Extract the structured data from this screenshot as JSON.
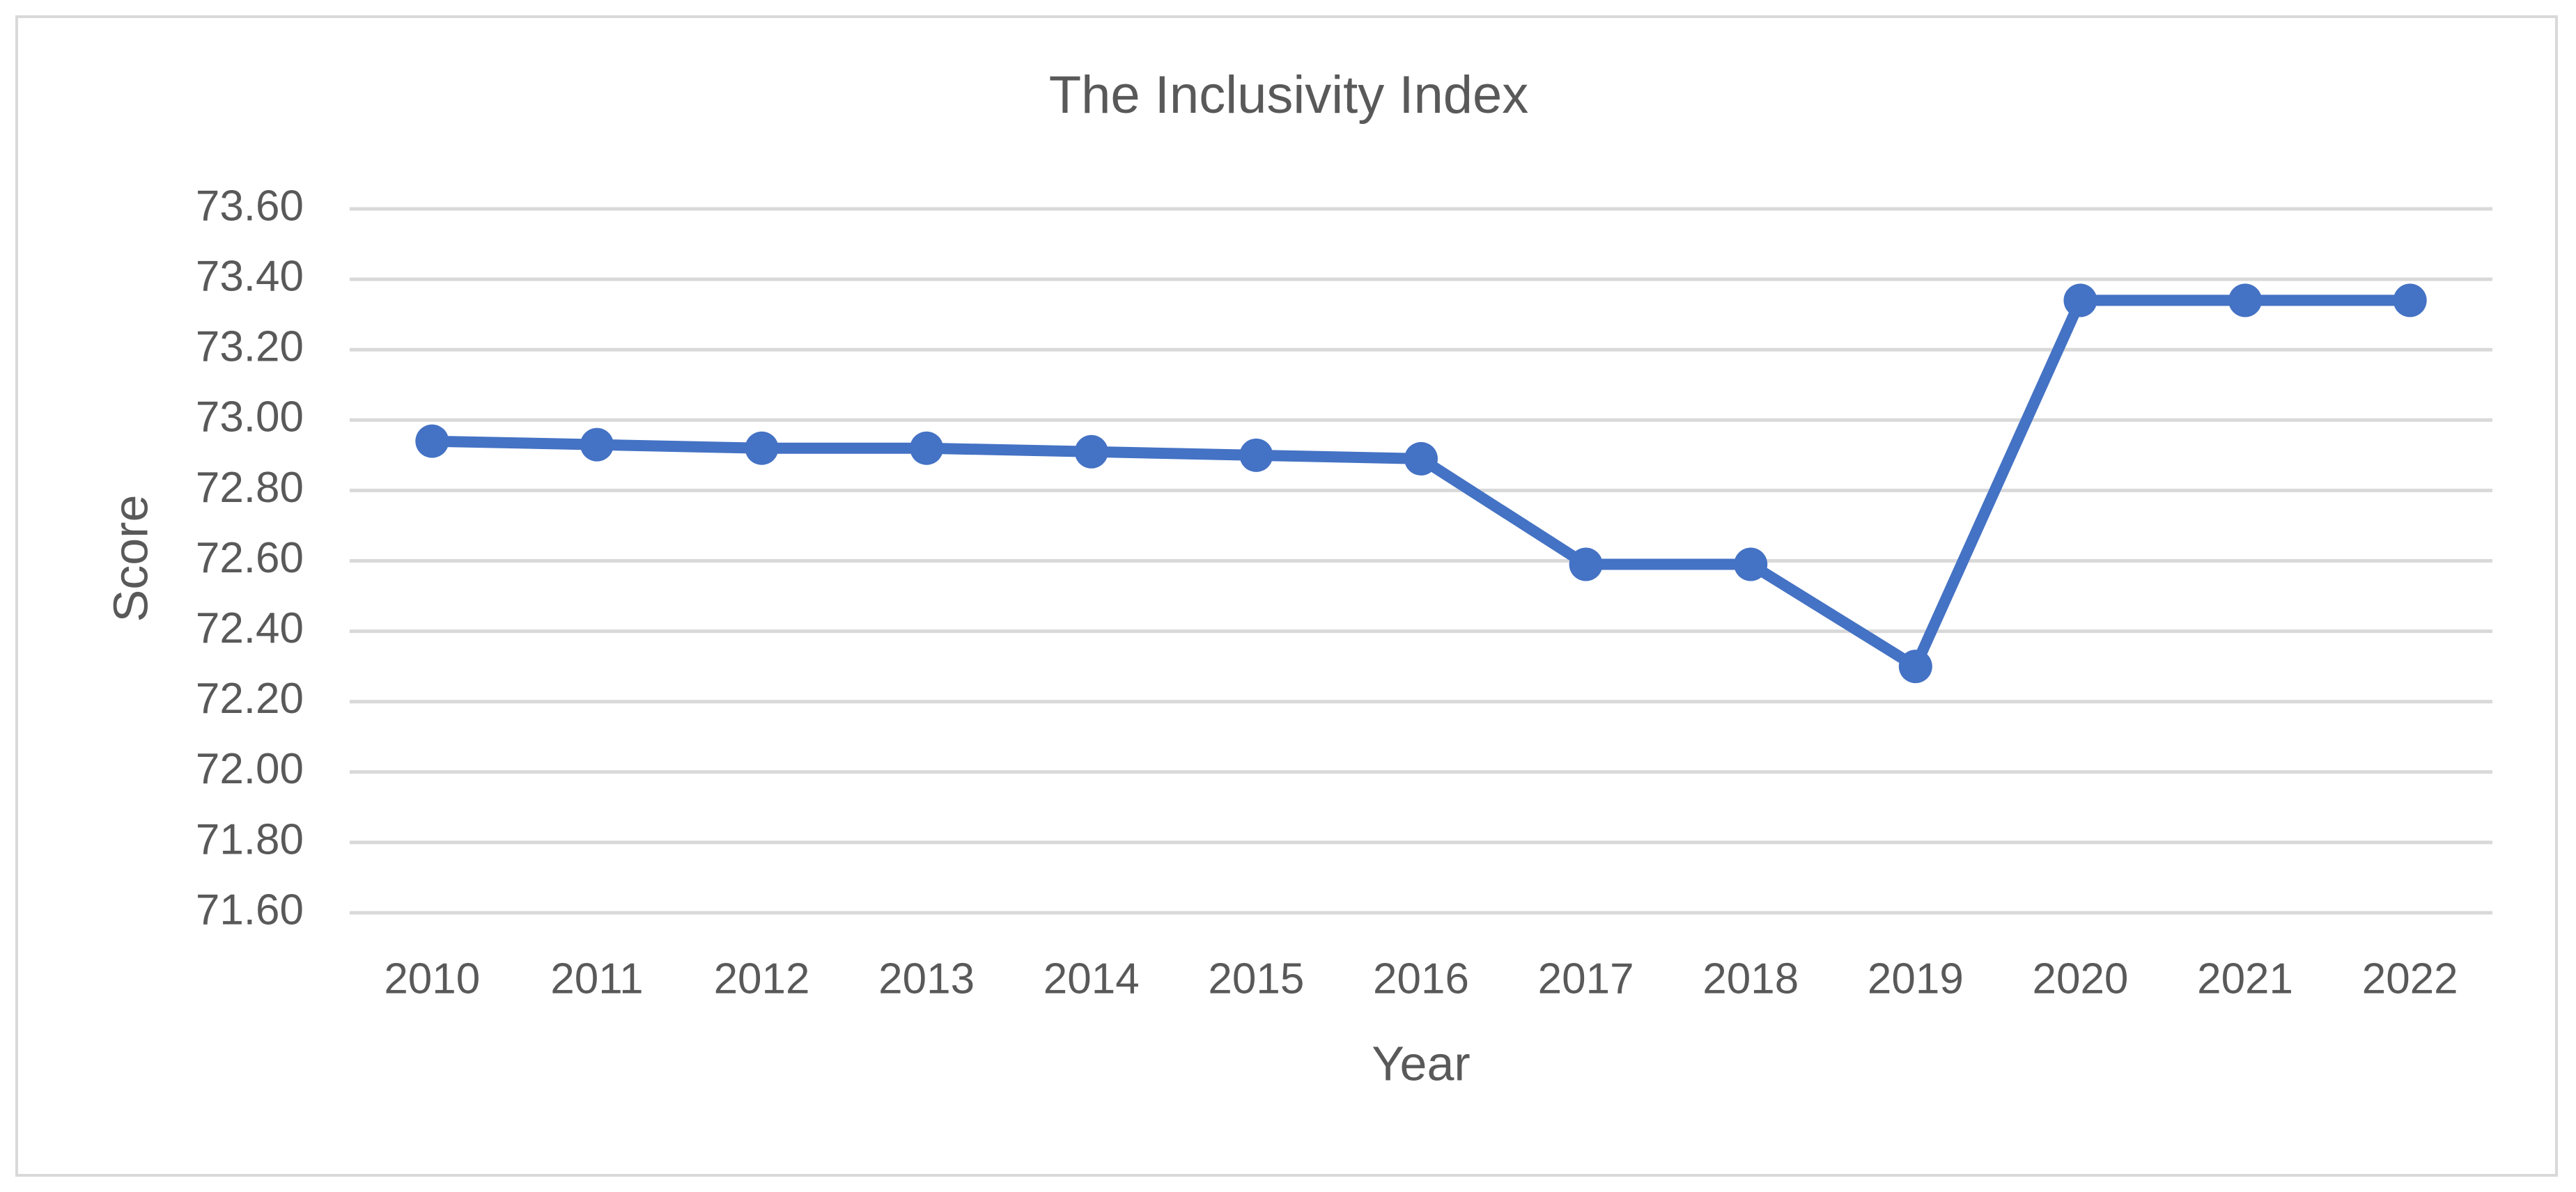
{
  "chart_data": {
    "type": "line",
    "title": "The Inclusivity Index",
    "x_label": "Year",
    "y_label": "Score",
    "categories": [
      "2010",
      "2011",
      "2012",
      "2013",
      "2014",
      "2015",
      "2016",
      "2017",
      "2018",
      "2019",
      "2020",
      "2021",
      "2022"
    ],
    "series": [
      {
        "name": "Score",
        "color": "#4472c4",
        "values": [
          72.94,
          72.93,
          72.92,
          72.92,
          72.91,
          72.9,
          72.89,
          72.59,
          72.59,
          72.3,
          73.34,
          73.34,
          73.34
        ]
      }
    ],
    "ylim": [
      71.6,
      73.6
    ],
    "yticks": [
      {
        "value": 71.6,
        "label": "71.60"
      },
      {
        "value": 71.8,
        "label": "71.80"
      },
      {
        "value": 72.0,
        "label": "72.00"
      },
      {
        "value": 72.2,
        "label": "72.20"
      },
      {
        "value": 72.4,
        "label": "72.40"
      },
      {
        "value": 72.6,
        "label": "72.60"
      },
      {
        "value": 72.8,
        "label": "72.80"
      },
      {
        "value": 73.0,
        "label": "73.00"
      },
      {
        "value": 73.2,
        "label": "73.20"
      },
      {
        "value": 73.4,
        "label": "73.40"
      },
      {
        "value": 73.6,
        "label": "73.60"
      }
    ],
    "grid": true
  }
}
